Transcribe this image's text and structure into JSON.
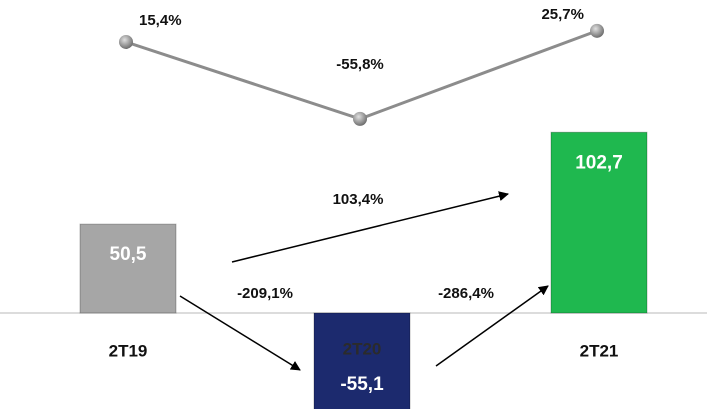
{
  "chart_data": {
    "type": "bar",
    "categories": [
      "2T19",
      "2T20",
      "2T21"
    ],
    "series": [
      {
        "type": "bar",
        "colors": [
          "#a6a6a6",
          "#1c2a6e",
          "#1fb84f"
        ],
        "values": [
          50.5,
          -55.1,
          102.7
        ],
        "value_labels": [
          "50,5",
          "-55,1",
          "102,7"
        ]
      },
      {
        "type": "line",
        "color": "#8c8c8c",
        "values": [
          15.4,
          -55.8,
          25.7
        ],
        "value_labels": [
          "15,4%",
          "-55,8%",
          "25,7%"
        ]
      }
    ],
    "annotations": [
      "103,4%",
      "-209,1%",
      "-286,4%"
    ]
  }
}
